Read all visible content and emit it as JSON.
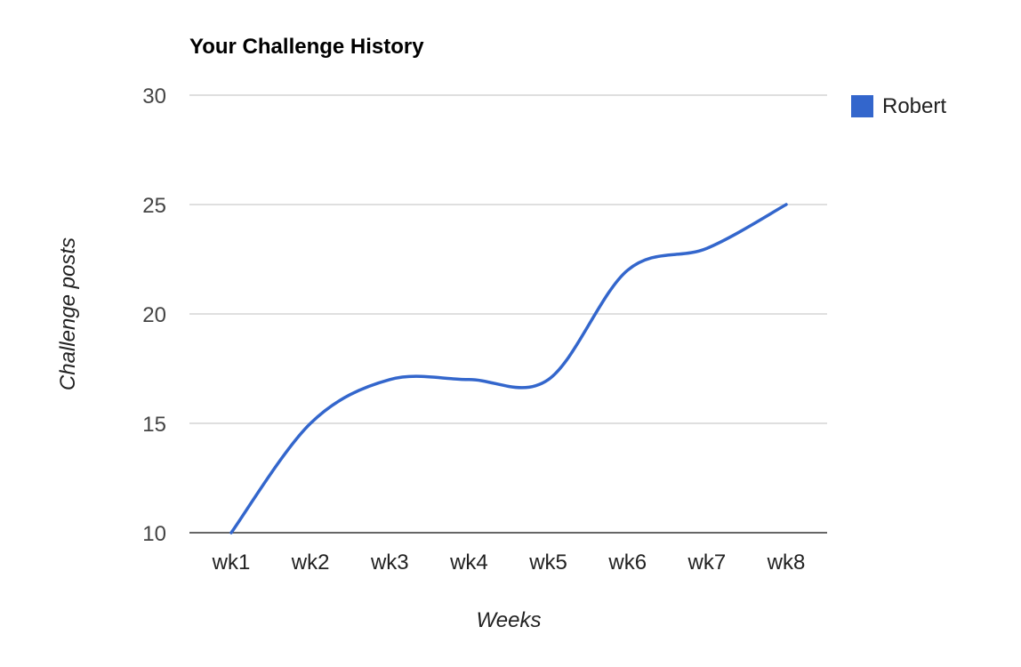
{
  "chart_data": {
    "type": "line",
    "title": "Your Challenge History",
    "xlabel": "Weeks",
    "ylabel": "Challenge posts",
    "categories": [
      "wk1",
      "wk2",
      "wk3",
      "wk4",
      "wk5",
      "wk6",
      "wk7",
      "wk8"
    ],
    "series": [
      {
        "name": "Robert",
        "color": "#3366cc",
        "values": [
          10,
          15,
          17,
          17,
          17,
          22,
          23,
          25
        ]
      }
    ],
    "ylim": [
      10,
      30
    ],
    "yticks": [
      "10",
      "15",
      "20",
      "25",
      "30"
    ],
    "grid": true,
    "legend": "right",
    "curve": "smooth"
  }
}
